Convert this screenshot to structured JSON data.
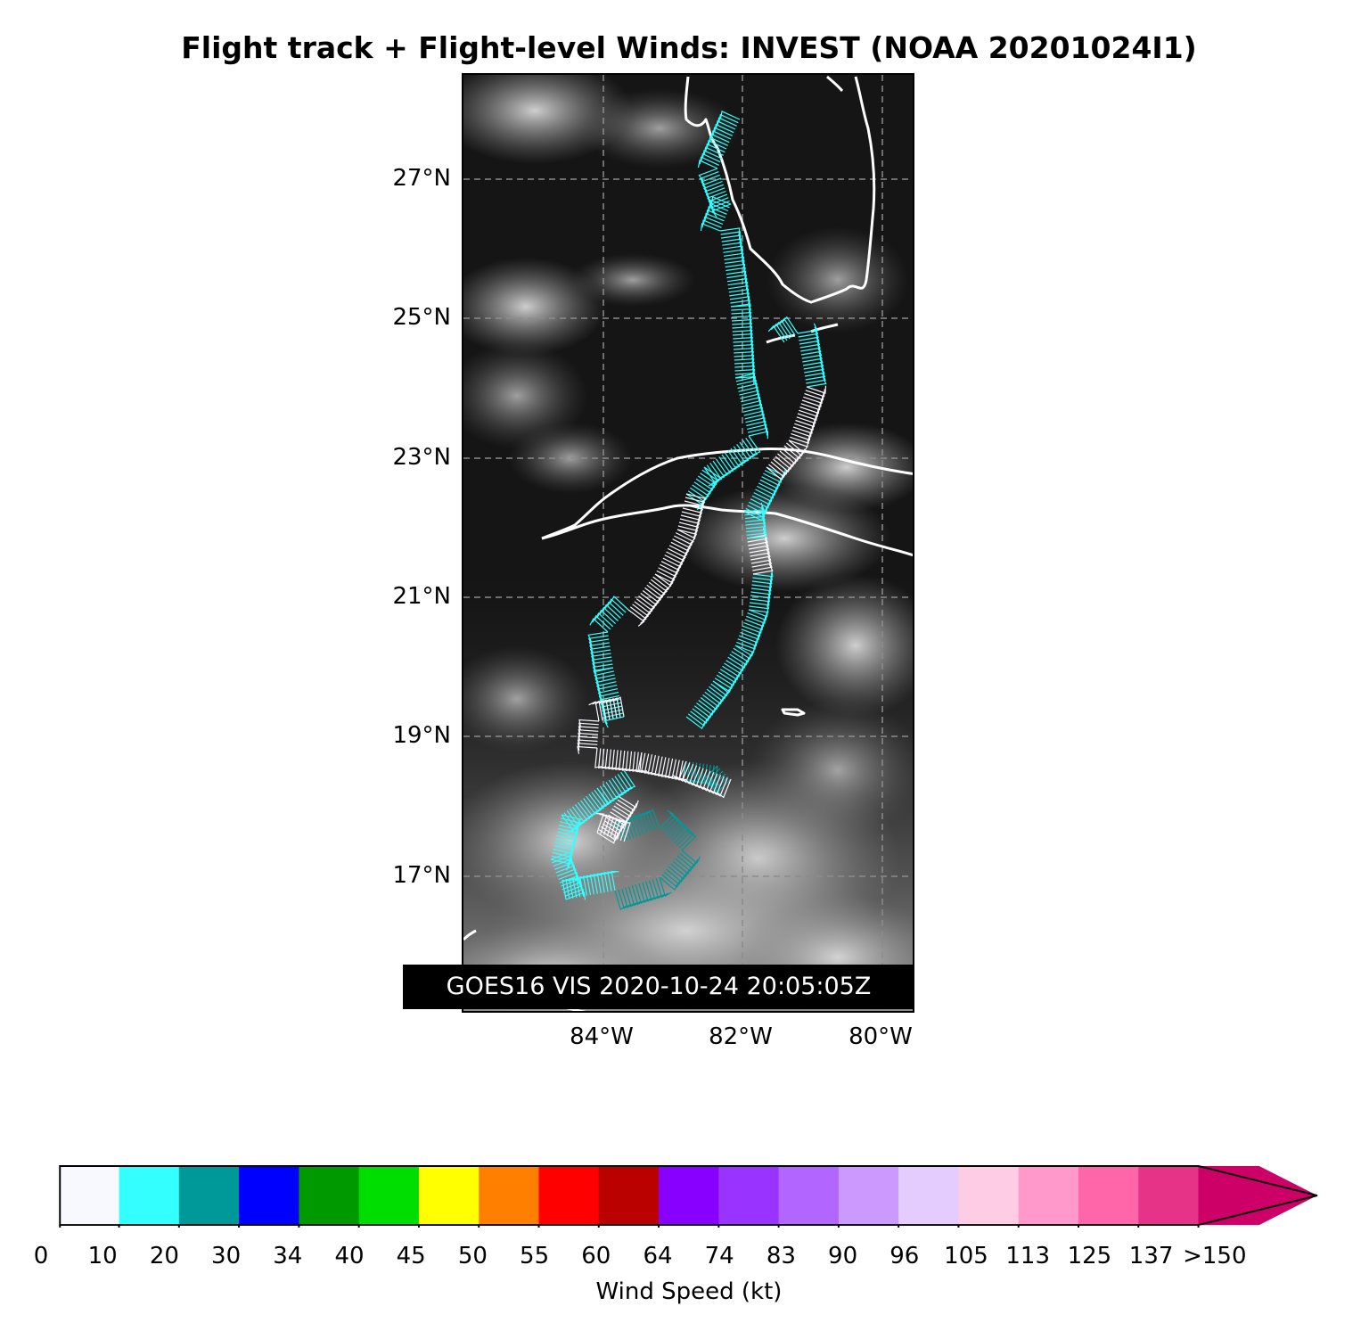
{
  "title": "Flight track + Flight-level Winds: INVEST (NOAA 20201024I1)",
  "map": {
    "lat_labels": [
      "27°N",
      "25°N",
      "23°N",
      "21°N",
      "19°N",
      "17°N"
    ],
    "lon_labels": [
      "84°W",
      "82°W",
      "80°W"
    ],
    "imagery_label": "GOES16 VIS 2020-10-24 20:05:05Z",
    "coastline_color": "#ffffff",
    "gridline_style": "dashed",
    "background": "grayscale visible satellite imagery"
  },
  "colorbar": {
    "title": "Wind Speed (kt)",
    "tick_labels": [
      "0",
      "10",
      "20",
      "30",
      "34",
      "40",
      "45",
      "50",
      "55",
      "60",
      "64",
      "74",
      "83",
      "90",
      "96",
      "105",
      "113",
      "125",
      "137",
      ">150"
    ],
    "colors": [
      "#f8f8ff",
      "#33ffff",
      "#009999",
      "#0000ff",
      "#009900",
      "#00dd00",
      "#ffff00",
      "#ff7f00",
      "#ff0000",
      "#bb0000",
      "#8800ff",
      "#9933ff",
      "#b266ff",
      "#cc99ff",
      "#e5ccff",
      "#ffcce5",
      "#ff99cc",
      "#ff66aa",
      "#e63388",
      "#cc0066"
    ],
    "extend": "max"
  },
  "legend_colors": {
    "wind_0_10": "#f8f8ff",
    "wind_10_20": "#33ffff",
    "wind_20_30": "#009999"
  }
}
